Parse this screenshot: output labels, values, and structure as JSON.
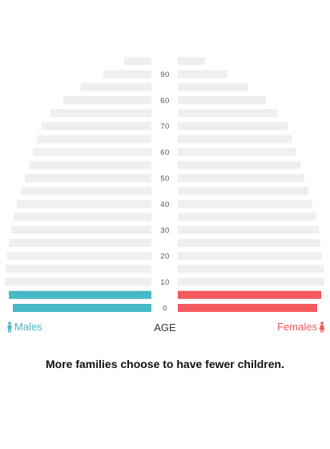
{
  "chart_data": {
    "type": "bar",
    "orientation": "horizontal-population-pyramid",
    "tick_labels": [
      "0",
      "10",
      "20",
      "30",
      "40",
      "50",
      "60",
      "70",
      "60",
      "90"
    ],
    "axis_title": "AGE",
    "caption": "More families choose to have fewer children.",
    "series": [
      {
        "name": "Males",
        "values": [
          173,
          178,
          183,
          182,
          180,
          178,
          175,
          172,
          168,
          163,
          158,
          153,
          148,
          143,
          137,
          126,
          110,
          88,
          60,
          34
        ],
        "highlighted_rows": [
          0,
          1
        ]
      },
      {
        "name": "Females",
        "values": [
          174,
          179,
          183,
          182,
          180,
          178,
          176,
          172,
          168,
          163,
          158,
          153,
          148,
          143,
          137,
          124,
          110,
          88,
          62,
          34
        ],
        "highlighted_rows": [
          0,
          1
        ]
      }
    ],
    "xlim": [
      0,
      183
    ]
  },
  "colors": {
    "males_highlight": "#47b8c7",
    "females_highlight": "#f4595e",
    "base_bar": "#efefef",
    "tick_text": "#555555"
  },
  "legend": {
    "males_label": "Males",
    "females_label": "Females",
    "males_icon": "male-person-icon",
    "females_icon": "female-person-icon"
  }
}
